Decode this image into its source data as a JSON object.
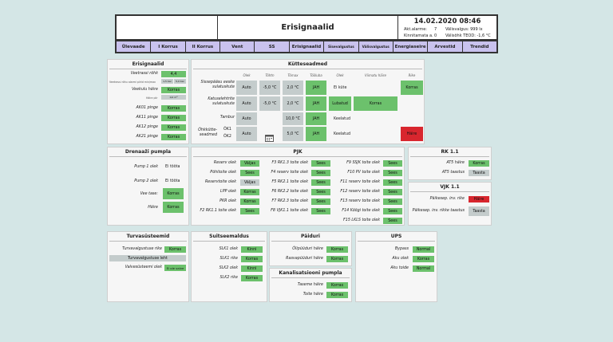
{
  "header": {
    "title": "Erisignaalid",
    "datetime": "14.02.2020 08:46",
    "alarms_label": "Akt.alarme:",
    "alarms_value": "7",
    "light_label": "Välisvalgus: 999 lx",
    "confirmed_label": "Kinnitamata a.",
    "confirmed_value": "0",
    "temp_label": "Välisõhk TEOD: -1,6 °C"
  },
  "nav": [
    "Ülevaade",
    "I Korrus",
    "II Korrus",
    "Vent",
    "SS",
    "Erisignaalid",
    "Sisevalgustus",
    "Välisvalgustus",
    "Energiaseire",
    "Arvestid",
    "Trendid"
  ],
  "erisignaalid": {
    "title": "Erisignaalid",
    "veetrassi_label": "Veetrassi rõhk",
    "veetrassi_value": "4,4",
    "veetrassi_note": "Veetrassi rõhu alarmi piirid min/max",
    "veetrassi_min": "1,5 bar",
    "veetrassi_max": "5,0 bar",
    "leke_label": "Veekulu häire",
    "leke_value": "Korras",
    "leke_note": "Häire piir",
    "leke_limit": "0,0 m³",
    "rows": [
      {
        "label": "AK01 pinge",
        "value": "Korras"
      },
      {
        "label": "AK11 pinge",
        "value": "Korras"
      },
      {
        "label": "AK12 pinge",
        "value": "Korras"
      },
      {
        "label": "AK21 pinge",
        "value": "Korras"
      }
    ]
  },
  "kutteseadmed": {
    "title": "Kütteseadmed",
    "columns": [
      "Olek",
      "Tõhtn",
      "Tõmax",
      "Tööluba",
      "Olek",
      "Viimatu häire",
      "Rike"
    ],
    "rows": [
      {
        "label": "Sissepääsu eeske sulatuskute",
        "mode": "Auto",
        "t1": "-5,0 °C",
        "t2": "2,0 °C",
        "perm": "JAH",
        "state": "Ei küte",
        "alarm": "",
        "fault": "Korras"
      },
      {
        "label": "Katuselehtrite sulatuskute",
        "mode": "Auto",
        "t1": "-5,0 °C",
        "t2": "2,0 °C",
        "perm": "JAH",
        "state": "Lubatud",
        "alarm": "Korras",
        "fault": ""
      },
      {
        "label": "Tambur",
        "mode": "Auto",
        "t1": "",
        "t2": "10,0 °C",
        "perm": "JAH",
        "state": "Keelatud",
        "alarm": "",
        "fault": ""
      },
      {
        "label": "Õhkkütte-seadmed",
        "sub1": "ÕK1",
        "sub2": "ÕK2",
        "mode": "Auto",
        "t1": "",
        "t2": "5,0 °C",
        "perm": "JAH",
        "state": "Keelatud",
        "alarm": "",
        "fault": "Häire"
      }
    ]
  },
  "drenaazi": {
    "title": "Drenaaži pumpla",
    "rows": [
      {
        "label": "Pump 1 olek",
        "value": "Ei tööta"
      },
      {
        "label": "Pump 2 olek",
        "value": "Ei tööta"
      },
      {
        "label": "Vee tase:",
        "value": "Korras"
      },
      {
        "label": "Häire",
        "value": "Korras"
      }
    ]
  },
  "pjk": {
    "title": "PJK",
    "col1": [
      {
        "label": "Reserv olek",
        "value": "Väljas"
      },
      {
        "label": "Põhitoite olek",
        "value": "Sees"
      },
      {
        "label": "Reservtoite olek",
        "value": "Väljas"
      },
      {
        "label": "LPP olek",
        "value": "Korras"
      },
      {
        "label": "PKR olek",
        "value": "Korras"
      },
      {
        "label": "F2 RK1.1 toite olek",
        "value": "Sees"
      }
    ],
    "col2": [
      {
        "label": "F3 RK1.3 toite olek",
        "value": "Sees"
      },
      {
        "label": "F4 reserv toite olek",
        "value": "Sees"
      },
      {
        "label": "F5 RK2.1 toite olek",
        "value": "Sees"
      },
      {
        "label": "F6 RK2.2 toite olek",
        "value": "Sees"
      },
      {
        "label": "F7 RK2.3 toite olek",
        "value": "Sees"
      },
      {
        "label": "F8 VJK1.1 toite olek",
        "value": "Sees"
      }
    ],
    "col3": [
      {
        "label": "F9 SSJK toite olek",
        "value": "Sees"
      },
      {
        "label": "F10 PV toite olek",
        "value": "Sees"
      },
      {
        "label": "F11 reserv toite olek",
        "value": "Sees"
      },
      {
        "label": "F12 reserv toite olek",
        "value": "Sees"
      },
      {
        "label": "F13 reserv toite olek",
        "value": "Sees"
      },
      {
        "label": "F14 Köögi toite olek",
        "value": "Sees"
      },
      {
        "label": "F15 LKLS toite olek",
        "value": "Sees"
      }
    ]
  },
  "rk": {
    "title": "RK 1.1",
    "rows": [
      {
        "label": "AT5 häire",
        "value": "Korras"
      },
      {
        "label": "AT5 taastus",
        "value": "Taasta"
      }
    ]
  },
  "vjk": {
    "title": "VJK 1.1",
    "rows": [
      {
        "label": "Päikesep. inv. rike",
        "value": "Häire"
      },
      {
        "label": "Päikesep. inv. rikke taastus",
        "value": "Taasta"
      }
    ]
  },
  "turva": {
    "title": "Turvasüsteemid",
    "row1_label": "Turvavalgustuse rike",
    "row1_value": "Korras",
    "wide": "Turvavalgustuse leht",
    "row3_label": "Valvesüsteemi olek",
    "row3_value": "Ei ole valve"
  },
  "suits": {
    "title": "Suitseemaldus",
    "rows": [
      {
        "label": "SLK1 olek",
        "value": "Kinni"
      },
      {
        "label": "SLK1 rike",
        "value": "Korras"
      },
      {
        "label": "SLK2 olek",
        "value": "Kinni"
      },
      {
        "label": "SLK2 rike",
        "value": "Korras"
      }
    ]
  },
  "paiduri": {
    "title": "Päiduri",
    "rows": [
      {
        "label": "Õlipüüduri häire",
        "value": "Korras"
      },
      {
        "label": "Rasvapüüduri häire",
        "value": "Korras"
      }
    ]
  },
  "kanal": {
    "title": "Kanalisatsiooni pumpla",
    "rows": [
      {
        "label": "Taseme häire",
        "value": "Korras"
      },
      {
        "label": "Toite häire",
        "value": "Korras"
      }
    ]
  },
  "ups": {
    "title": "UPS",
    "rows": [
      {
        "label": "Bypass",
        "value": "Normal"
      },
      {
        "label": "Aku olek",
        "value": "Korras"
      },
      {
        "label": "Aku toide",
        "value": "Normal"
      }
    ]
  }
}
